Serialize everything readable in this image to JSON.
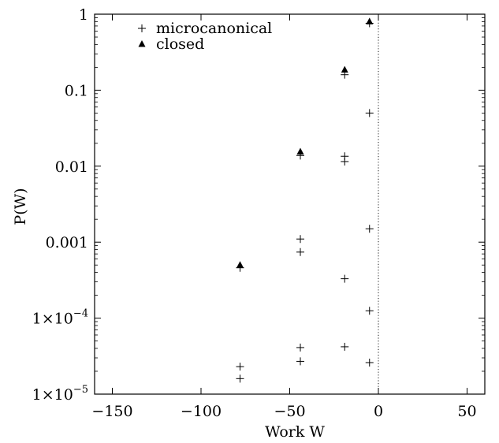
{
  "chart_data": {
    "type": "scatter",
    "xlabel": "Work W",
    "ylabel": "P(W)",
    "xlim": [
      -160,
      60
    ],
    "ylim": [
      1e-05,
      1
    ],
    "yscale": "log",
    "x_ticks": [
      -150,
      -100,
      -50,
      0,
      50
    ],
    "x_tick_labels": [
      "−150",
      "−100",
      "−50",
      "0",
      "50"
    ],
    "y_ticks": [
      1e-05,
      0.0001,
      0.001,
      0.01,
      0.1,
      1
    ],
    "y_tick_labels": [
      {
        "base": "1×10",
        "exp": "−5"
      },
      {
        "base": "1×10",
        "exp": "−4"
      },
      {
        "base": "0.001",
        "exp": ""
      },
      {
        "base": "0.01",
        "exp": ""
      },
      {
        "base": "0.1",
        "exp": ""
      },
      {
        "base": "1",
        "exp": ""
      }
    ],
    "reference_line": {
      "x": 0,
      "style": "dotted"
    },
    "legend_position": "top-left",
    "series": [
      {
        "name": "microcanonical",
        "marker": "plus",
        "points": [
          {
            "x": -78,
            "y": 0.00046
          },
          {
            "x": -78,
            "y": 2.3e-05
          },
          {
            "x": -78,
            "y": 1.6e-05
          },
          {
            "x": -44,
            "y": 0.0138
          },
          {
            "x": -44,
            "y": 0.0011
          },
          {
            "x": -44,
            "y": 0.00074
          },
          {
            "x": -44,
            "y": 4.1e-05
          },
          {
            "x": -44,
            "y": 2.7e-05
          },
          {
            "x": -19,
            "y": 0.16
          },
          {
            "x": -19,
            "y": 0.0135
          },
          {
            "x": -19,
            "y": 0.0115
          },
          {
            "x": -19,
            "y": 0.00033
          },
          {
            "x": -19,
            "y": 4.2e-05
          },
          {
            "x": -5,
            "y": 0.76
          },
          {
            "x": -5,
            "y": 0.05
          },
          {
            "x": -5,
            "y": 0.0015
          },
          {
            "x": -5,
            "y": 0.000125
          },
          {
            "x": -5,
            "y": 2.6e-05
          }
        ]
      },
      {
        "name": "closed",
        "marker": "triangle",
        "points": [
          {
            "x": -78,
            "y": 0.0005
          },
          {
            "x": -44,
            "y": 0.0155
          },
          {
            "x": -19,
            "y": 0.185
          },
          {
            "x": -5,
            "y": 0.8
          }
        ]
      }
    ]
  }
}
